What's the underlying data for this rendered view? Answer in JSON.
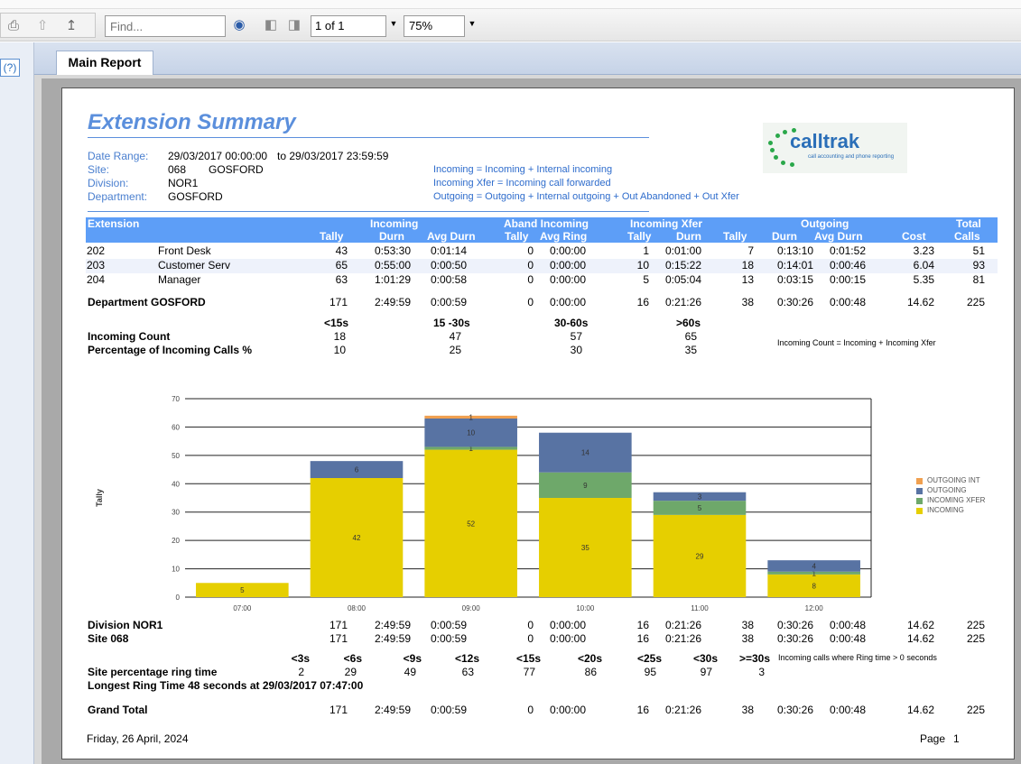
{
  "toolbar": {
    "find_placeholder": "Find...",
    "page_value": "1 of 1",
    "zoom_value": "75%"
  },
  "left_panel": {
    "help_label": "(?)"
  },
  "tab": {
    "label": "Main Report"
  },
  "report": {
    "title": "Extension Summary",
    "date_range_label": "Date Range:",
    "date_range_value": "29/03/2017 00:00:00",
    "date_range_to": "to 29/03/2017 23:59:59",
    "site_label": "Site:",
    "site_code": "068",
    "site_name": "GOSFORD",
    "division_label": "Division:",
    "division_value": "NOR1",
    "department_label": "Department:",
    "department_value": "GOSFORD",
    "notes": [
      "Incoming = Incoming + Internal incoming",
      "Incoming Xfer = Incoming call forwarded",
      "Outgoing = Outgoing + Internal outgoing + Out Abandoned + Out Xfer"
    ],
    "logo": {
      "name": "calltrak",
      "tagline": "call accounting and phone reporting"
    },
    "headers": {
      "extension": "Extension",
      "incoming": "Incoming",
      "aband_incoming": "Aband Incoming",
      "incoming_xfer": "Incoming Xfer",
      "outgoing": "Outgoing",
      "total": "Total",
      "tally": "Tally",
      "durn": "Durn",
      "avg_durn": "Avg Durn",
      "aband_tally": "Tally",
      "avg_ring": "Avg Ring",
      "xfer_tally": "Tally",
      "xfer_durn": "Durn",
      "out_tally": "Tally",
      "out_durn": "Durn",
      "out_avg_durn": "Avg Durn",
      "cost": "Cost",
      "calls": "Calls"
    },
    "rows": [
      {
        "ext": "202",
        "name": "Front Desk",
        "tally": "43",
        "durn": "0:53:30",
        "avg": "0:01:14",
        "ab_tally": "0",
        "ab_ring": "0:00:00",
        "x_tally": "1",
        "x_durn": "0:01:00",
        "o_tally": "7",
        "o_durn": "0:13:10",
        "o_avg": "0:01:52",
        "cost": "3.23",
        "calls": "51"
      },
      {
        "ext": "203",
        "name": "Customer Serv",
        "tally": "65",
        "durn": "0:55:00",
        "avg": "0:00:50",
        "ab_tally": "0",
        "ab_ring": "0:00:00",
        "x_tally": "10",
        "x_durn": "0:15:22",
        "o_tally": "18",
        "o_durn": "0:14:01",
        "o_avg": "0:00:46",
        "cost": "6.04",
        "calls": "93"
      },
      {
        "ext": "204",
        "name": "Manager",
        "tally": "63",
        "durn": "1:01:29",
        "avg": "0:00:58",
        "ab_tally": "0",
        "ab_ring": "0:00:00",
        "x_tally": "5",
        "x_durn": "0:05:04",
        "o_tally": "13",
        "o_durn": "0:03:15",
        "o_avg": "0:00:15",
        "cost": "5.35",
        "calls": "81"
      }
    ],
    "department_total": {
      "label": "Department GOSFORD",
      "tally": "171",
      "durn": "2:49:59",
      "avg": "0:00:59",
      "ab_tally": "0",
      "ab_ring": "0:00:00",
      "x_tally": "16",
      "x_durn": "0:21:26",
      "o_tally": "38",
      "o_durn": "0:30:26",
      "o_avg": "0:00:48",
      "cost": "14.62",
      "calls": "225"
    },
    "buckets": {
      "headers": [
        "<15s",
        "15 -30s",
        "30-60s",
        ">60s"
      ],
      "count_label": "Incoming Count",
      "counts": [
        "18",
        "47",
        "57",
        "65"
      ],
      "pct_label": "Percentage of Incoming Calls %",
      "pcts": [
        "10",
        "25",
        "30",
        "35"
      ],
      "note": "Incoming Count = Incoming + Incoming Xfer"
    },
    "division_total": {
      "label": "Division NOR1",
      "tally": "171",
      "durn": "2:49:59",
      "avg": "0:00:59",
      "ab_tally": "0",
      "ab_ring": "0:00:00",
      "x_tally": "16",
      "x_durn": "0:21:26",
      "o_tally": "38",
      "o_durn": "0:30:26",
      "o_avg": "0:00:48",
      "cost": "14.62",
      "calls": "225"
    },
    "site_total": {
      "label": "Site 068",
      "tally": "171",
      "durn": "2:49:59",
      "avg": "0:00:59",
      "ab_tally": "0",
      "ab_ring": "0:00:00",
      "x_tally": "16",
      "x_durn": "0:21:26",
      "o_tally": "38",
      "o_durn": "0:30:26",
      "o_avg": "0:00:48",
      "cost": "14.62",
      "calls": "225"
    },
    "ring": {
      "headers": [
        "<3s",
        "<6s",
        "<9s",
        "<12s",
        "<15s",
        "<20s",
        "<25s",
        "<30s",
        ">=30s"
      ],
      "label": "Site percentage ring time",
      "values": [
        "2",
        "29",
        "49",
        "63",
        "77",
        "86",
        "95",
        "97",
        "3"
      ],
      "note": "Incoming calls where Ring time > 0 seconds",
      "longest": "Longest Ring Time 48 seconds at 29/03/2017  07:47:00"
    },
    "grand_total": {
      "label": "Grand Total",
      "tally": "171",
      "durn": "2:49:59",
      "avg": "0:00:59",
      "ab_tally": "0",
      "ab_ring": "0:00:00",
      "x_tally": "16",
      "x_durn": "0:21:26",
      "o_tally": "38",
      "o_durn": "0:30:26",
      "o_avg": "0:00:48",
      "cost": "14.62",
      "calls": "225"
    },
    "footer_date": "Friday, 26 April, 2024",
    "footer_page_label": "Page",
    "footer_page_num": "1"
  },
  "chart_data": {
    "type": "bar",
    "stacked": true,
    "categories": [
      "07:00",
      "08:00",
      "09:00",
      "10:00",
      "11:00",
      "12:00"
    ],
    "ylabel": "Tally",
    "ylim": [
      0,
      70
    ],
    "yticks": [
      0,
      10,
      20,
      30,
      40,
      50,
      60,
      70
    ],
    "legend_position": "right",
    "series": [
      {
        "name": "INCOMING",
        "color": "#e6cf00",
        "values": [
          5,
          42,
          52,
          35,
          29,
          8
        ]
      },
      {
        "name": "INCOMING XFER",
        "color": "#6ea86a",
        "values": [
          0,
          0,
          1,
          9,
          5,
          1
        ]
      },
      {
        "name": "OUTGOING",
        "color": "#5873a3",
        "values": [
          0,
          6,
          10,
          14,
          3,
          4
        ]
      },
      {
        "name": "OUTGOING INT",
        "color": "#f0a050",
        "values": [
          0,
          0,
          1,
          0,
          0,
          0
        ]
      }
    ]
  }
}
